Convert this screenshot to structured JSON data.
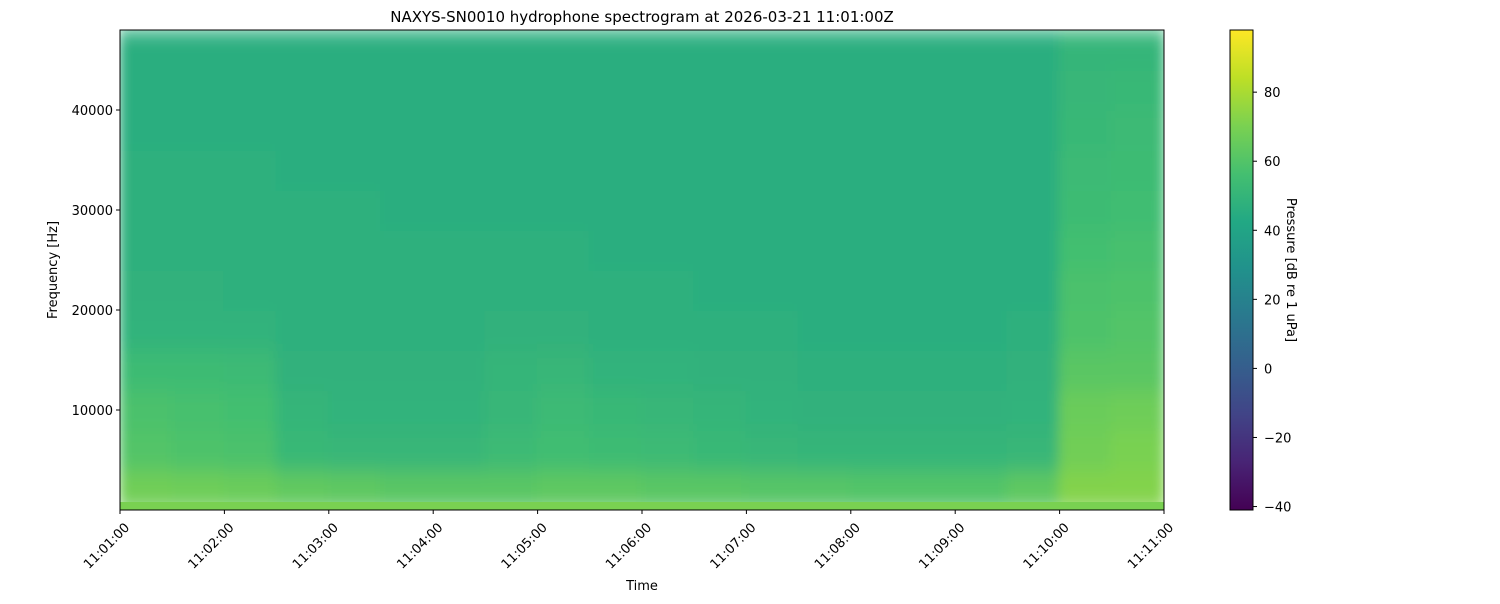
{
  "chart_data": {
    "type": "heatmap",
    "title": "NAXYS-SN0010 hydrophone spectrogram at 2026-03-21 11:01:00Z",
    "xlabel": "Time",
    "ylabel": "Frequency [Hz]",
    "colorbar_label": "Pressure [dB re 1 uPa]",
    "colormap": "viridis",
    "x_ticks": [
      "11:01:00",
      "11:02:00",
      "11:03:00",
      "11:04:00",
      "11:05:00",
      "11:06:00",
      "11:07:00",
      "11:08:00",
      "11:09:00",
      "11:10:00",
      "11:11:00"
    ],
    "xlim": [
      "11:01:00",
      "11:11:00"
    ],
    "y_ticks": [
      10000,
      20000,
      30000,
      40000
    ],
    "ylim": [
      0,
      48000
    ],
    "colorbar_ticks": [
      -40,
      -20,
      0,
      20,
      40,
      60,
      80
    ],
    "clim": [
      -41,
      98
    ],
    "time_bins": [
      "11:01:00",
      "11:01:30",
      "11:02:00",
      "11:02:30",
      "11:03:00",
      "11:03:30",
      "11:04:00",
      "11:04:30",
      "11:05:00",
      "11:05:30",
      "11:06:00",
      "11:06:30",
      "11:07:00",
      "11:07:30",
      "11:08:00",
      "11:08:30",
      "11:09:00",
      "11:09:30",
      "11:10:00",
      "11:10:30"
    ],
    "frequency_bins_hz": [
      0,
      4000,
      8000,
      12000,
      16000,
      20000,
      24000,
      28000,
      32000,
      36000,
      40000,
      44000
    ],
    "values_db": [
      [
        68,
        67,
        66,
        64,
        63,
        62,
        62,
        62,
        63,
        63,
        62,
        62,
        61,
        61,
        60,
        60,
        60,
        63,
        72,
        72
      ],
      [
        60,
        59,
        58,
        52,
        51,
        51,
        51,
        53,
        55,
        54,
        53,
        52,
        51,
        50,
        50,
        50,
        50,
        51,
        68,
        70
      ],
      [
        58,
        57,
        56,
        50,
        49,
        49,
        49,
        51,
        53,
        52,
        51,
        50,
        49,
        48,
        48,
        48,
        48,
        49,
        66,
        67
      ],
      [
        54,
        54,
        53,
        48,
        48,
        48,
        48,
        50,
        51,
        49,
        49,
        48,
        48,
        47,
        47,
        47,
        47,
        48,
        62,
        62
      ],
      [
        49,
        49,
        49,
        47,
        47,
        47,
        47,
        48,
        48,
        47,
        47,
        47,
        47,
        46,
        46,
        46,
        46,
        47,
        59,
        60
      ],
      [
        48,
        48,
        47,
        47,
        47,
        47,
        47,
        47,
        47,
        47,
        47,
        46,
        46,
        46,
        46,
        46,
        46,
        46,
        58,
        59
      ],
      [
        47,
        47,
        47,
        47,
        47,
        47,
        47,
        47,
        47,
        46,
        46,
        46,
        46,
        46,
        46,
        46,
        46,
        46,
        56,
        57
      ],
      [
        47,
        47,
        47,
        47,
        47,
        46,
        46,
        46,
        46,
        46,
        46,
        46,
        46,
        46,
        46,
        46,
        46,
        46,
        54,
        55
      ],
      [
        47,
        47,
        47,
        46,
        46,
        46,
        46,
        46,
        46,
        46,
        46,
        46,
        46,
        46,
        46,
        46,
        46,
        46,
        53,
        54
      ],
      [
        46,
        46,
        46,
        46,
        46,
        46,
        46,
        46,
        46,
        46,
        46,
        46,
        46,
        46,
        46,
        46,
        46,
        46,
        52,
        53
      ],
      [
        46,
        46,
        46,
        46,
        46,
        46,
        46,
        46,
        46,
        46,
        46,
        46,
        46,
        46,
        46,
        46,
        46,
        46,
        51,
        52
      ],
      [
        46,
        46,
        46,
        46,
        46,
        46,
        46,
        46,
        46,
        46,
        46,
        46,
        46,
        46,
        46,
        46,
        46,
        46,
        50,
        50
      ]
    ]
  }
}
